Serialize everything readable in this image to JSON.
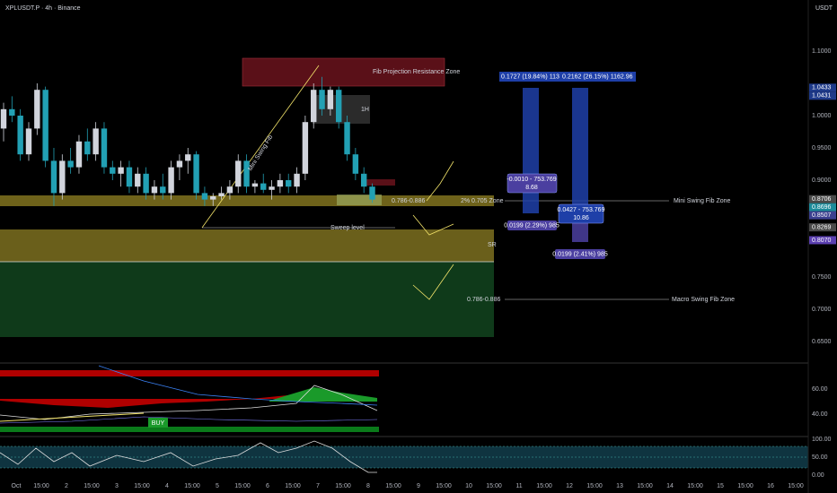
{
  "header": {
    "symbol": "XPLUSDT.P · 4h · Binance",
    "currency": "USDT"
  },
  "price_axis": {
    "labels": [
      {
        "value": 1.1,
        "label": "1.1000"
      },
      {
        "value": 1.0,
        "label": "1.0000"
      },
      {
        "value": 0.95,
        "label": "0.9500"
      },
      {
        "value": 0.9,
        "label": "0.9000"
      },
      {
        "value": 0.75,
        "label": "0.7500"
      },
      {
        "value": 0.7,
        "label": "0.7000"
      },
      {
        "value": 0.65,
        "label": "0.6500"
      }
    ],
    "badges": [
      {
        "value": 1.0433,
        "label": "1.0433",
        "color": "#1e3a8a"
      },
      {
        "value": 1.0431,
        "label": "1.0431",
        "color": "#1e3a8a"
      },
      {
        "value": 0.8706,
        "label": "0.8706",
        "color": "#4a4a4a"
      },
      {
        "value": 0.8696,
        "label": "0.8696",
        "color": "#1c8a9a"
      },
      {
        "value": 0.8507,
        "label": "0.8507",
        "color": "#3b3f8f"
      },
      {
        "value": 0.8269,
        "label": "0.8269",
        "color": "#4a4a4a"
      },
      {
        "value": 0.807,
        "label": "0.8070",
        "color": "#5b3fb0"
      }
    ]
  },
  "candles": [
    [
      0.98,
      1.02,
      0.96,
      1.01
    ],
    [
      1.01,
      1.03,
      0.99,
      1.0
    ],
    [
      1.0,
      1.01,
      0.93,
      0.94
    ],
    [
      0.94,
      0.99,
      0.93,
      0.98
    ],
    [
      0.98,
      1.05,
      0.97,
      1.04
    ],
    [
      1.04,
      1.045,
      0.92,
      0.93
    ],
    [
      0.93,
      0.95,
      0.86,
      0.88
    ],
    [
      0.88,
      0.94,
      0.87,
      0.93
    ],
    [
      0.93,
      0.95,
      0.91,
      0.92
    ],
    [
      0.92,
      0.97,
      0.91,
      0.96
    ],
    [
      0.96,
      0.98,
      0.93,
      0.94
    ],
    [
      0.94,
      0.99,
      0.93,
      0.98
    ],
    [
      0.98,
      0.99,
      0.91,
      0.92
    ],
    [
      0.92,
      0.93,
      0.9,
      0.91
    ],
    [
      0.91,
      0.93,
      0.89,
      0.92
    ],
    [
      0.92,
      0.93,
      0.88,
      0.89
    ],
    [
      0.89,
      0.92,
      0.88,
      0.91
    ],
    [
      0.91,
      0.92,
      0.87,
      0.88
    ],
    [
      0.88,
      0.9,
      0.87,
      0.89
    ],
    [
      0.89,
      0.91,
      0.87,
      0.88
    ],
    [
      0.88,
      0.93,
      0.87,
      0.92
    ],
    [
      0.92,
      0.94,
      0.9,
      0.93
    ],
    [
      0.93,
      0.95,
      0.91,
      0.94
    ],
    [
      0.94,
      0.945,
      0.87,
      0.88
    ],
    [
      0.88,
      0.89,
      0.86,
      0.87
    ],
    [
      0.87,
      0.88,
      0.86,
      0.875
    ],
    [
      0.875,
      0.89,
      0.87,
      0.88
    ],
    [
      0.88,
      0.9,
      0.87,
      0.89
    ],
    [
      0.89,
      0.94,
      0.88,
      0.93
    ],
    [
      0.93,
      0.94,
      0.88,
      0.89
    ],
    [
      0.89,
      0.9,
      0.88,
      0.895
    ],
    [
      0.895,
      0.91,
      0.88,
      0.885
    ],
    [
      0.885,
      0.9,
      0.87,
      0.89
    ],
    [
      0.89,
      0.91,
      0.88,
      0.9
    ],
    [
      0.9,
      0.91,
      0.88,
      0.89
    ],
    [
      0.89,
      0.92,
      0.88,
      0.91
    ],
    [
      0.91,
      1.0,
      0.9,
      0.99
    ],
    [
      0.99,
      1.05,
      0.98,
      1.04
    ],
    [
      1.04,
      1.06,
      1.0,
      1.01
    ],
    [
      1.01,
      1.045,
      1.0,
      1.04
    ],
    [
      1.04,
      1.045,
      0.98,
      0.99
    ],
    [
      0.99,
      1.0,
      0.93,
      0.94
    ],
    [
      0.94,
      0.95,
      0.9,
      0.91
    ],
    [
      0.91,
      0.92,
      0.88,
      0.89
    ],
    [
      0.89,
      0.895,
      0.865,
      0.87
    ]
  ],
  "annotations": {
    "fib_resistance": "Fib Projection Resistance Zone",
    "one_hour": "1H",
    "mini_swing": "Mini Swing Fib",
    "mini_range": "0.786-0.886",
    "zone_2pct": "2% 0.705 Zone",
    "sweep": "Sweep level",
    "sr": "SR",
    "macro_range": "0.786-0.886",
    "mini_zone": "Mini Swing Fib Zone",
    "macro_zone": "Macro Swing Fib Zone",
    "buy": "BUY"
  },
  "measures": {
    "top_left": "0.1727 (19.84%) 113",
    "top_right": "0.2162 (26.15%) 1162.96",
    "box1_line1": "-0.0010 - 753.769",
    "box1_line2": "8.68",
    "box2_line1": "0.0427 - 753.769",
    "box2_line2": "10.86",
    "box3": "0.0199 (2.29%) 985",
    "box4": "0.0199 (2.41%) 985"
  },
  "indicator_axis": {
    "pane1": [
      "60.00",
      "40.00"
    ],
    "pane2": [
      "100.00",
      "50.00",
      "0.00"
    ]
  },
  "time_axis": [
    "Oct",
    "15:00",
    "2",
    "15:00",
    "3",
    "15:00",
    "4",
    "15:00",
    "5",
    "15:00",
    "6",
    "15:00",
    "7",
    "15:00",
    "8",
    "15:00",
    "9",
    "15:00",
    "10",
    "15:00",
    "11",
    "15:00",
    "12",
    "15:00",
    "13",
    "15:00",
    "14",
    "15:00",
    "15",
    "15:00",
    "16",
    "15:00"
  ]
}
